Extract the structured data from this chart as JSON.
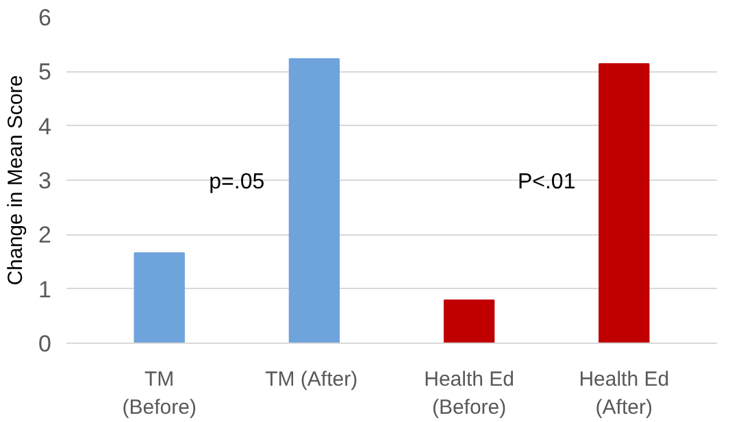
{
  "chart_data": {
    "type": "bar",
    "ylabel": "Change in Mean Score",
    "categories": [
      "TM\n(Before)",
      "TM  (After)",
      "Health Ed\n(Before)",
      "Health Ed\n(After)"
    ],
    "values": [
      1.66,
      5.23,
      0.79,
      5.14
    ],
    "colors": [
      "#6fa3dc",
      "#6fa3dc",
      "#c00000",
      "#c00000"
    ],
    "ylim": [
      0,
      6
    ],
    "yticks": [
      0,
      1,
      2,
      3,
      4,
      5,
      6
    ],
    "grid": "y",
    "annotations": [
      "p=.05",
      "P<.01"
    ]
  }
}
